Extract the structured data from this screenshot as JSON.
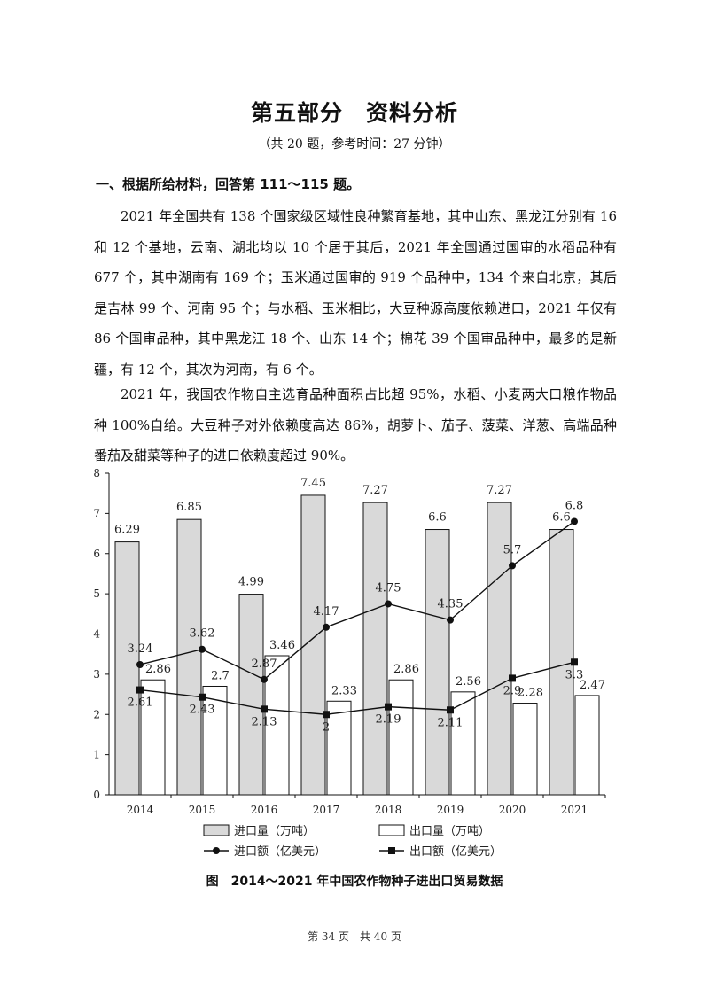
{
  "page": {
    "title": "第五部分　资料分析",
    "subtitle": "（共 20 题，参考时间：27 分钟）",
    "section_heading": "一、根据所给材料，回答第 111～115 题。",
    "paragraphs": [
      "2021 年全国共有 138 个国家级区域性良种繁育基地，其中山东、黑龙江分别有 16 和 12 个基地，云南、湖北均以 10 个居于其后，2021 年全国通过国审的水稻品种有 677 个，其中湖南有 169 个；玉米通过国审的 919 个品种中，134 个来自北京，其后是吉林 99 个、河南 95 个；与水稻、玉米相比，大豆种源高度依赖进口，2021 年仅有 86 个国审品种，其中黑龙江 18 个、山东 14 个；棉花 39 个国审品种中，最多的是新疆，有 12 个，其次为河南，有 6 个。",
      "2021 年，我国农作物自主选育品种面积占比超 95%，水稻、小麦两大口粮作物品种 100%自给。大豆种子对外依赖度高达 86%，胡萝卜、茄子、菠菜、洋葱、高端品种番茄及甜菜等种子的进口依赖度超过 90%。"
    ],
    "figure_caption": "图　2014～2021 年中国农作物种子进出口贸易数据",
    "footer": "第 34 页　共 40 页"
  },
  "chart_data": {
    "type": "bar",
    "categories": [
      "2014",
      "2015",
      "2016",
      "2017",
      "2018",
      "2019",
      "2020",
      "2021"
    ],
    "ylim": [
      0,
      8
    ],
    "yticks": [
      "0",
      "1",
      "2",
      "3",
      "4",
      "5",
      "6",
      "7",
      "8"
    ],
    "grid": false,
    "legend_position": "bottom",
    "series": [
      {
        "name": "进口量（万吨）",
        "kind": "bar",
        "color": "#d9d9d9",
        "values": [
          6.29,
          6.85,
          4.99,
          7.45,
          7.27,
          6.6,
          7.27,
          6.6
        ],
        "labels": [
          "6.29",
          "6.85",
          "4.99",
          "7.45",
          "7.27",
          "6.6",
          "7.27",
          "6.6"
        ]
      },
      {
        "name": "出口量（万吨）",
        "kind": "bar",
        "color": "#ffffff",
        "values": [
          2.86,
          2.7,
          3.46,
          2.33,
          2.86,
          2.56,
          2.28,
          2.47
        ],
        "labels": [
          "2.86",
          "2.7",
          "3.46",
          "2.33",
          "2.86",
          "2.56",
          "2.28",
          "2.47"
        ]
      },
      {
        "name": "进口额（亿美元）",
        "kind": "line",
        "marker": "circle",
        "color": "#111111",
        "values": [
          3.24,
          3.62,
          2.87,
          4.17,
          4.75,
          4.35,
          5.7,
          6.8
        ],
        "labels": [
          "3.24",
          "3.62",
          "2.87",
          "4.17",
          "4.75",
          "4.35",
          "5.7",
          "6.8"
        ]
      },
      {
        "name": "出口额（亿美元）",
        "kind": "line",
        "marker": "square",
        "color": "#111111",
        "values": [
          2.61,
          2.43,
          2.13,
          2,
          2.19,
          2.11,
          2.9,
          3.3
        ],
        "labels": [
          "2.61",
          "2.43",
          "2.13",
          "2",
          "2.19",
          "2.11",
          "2.9",
          "3.3"
        ]
      }
    ]
  }
}
